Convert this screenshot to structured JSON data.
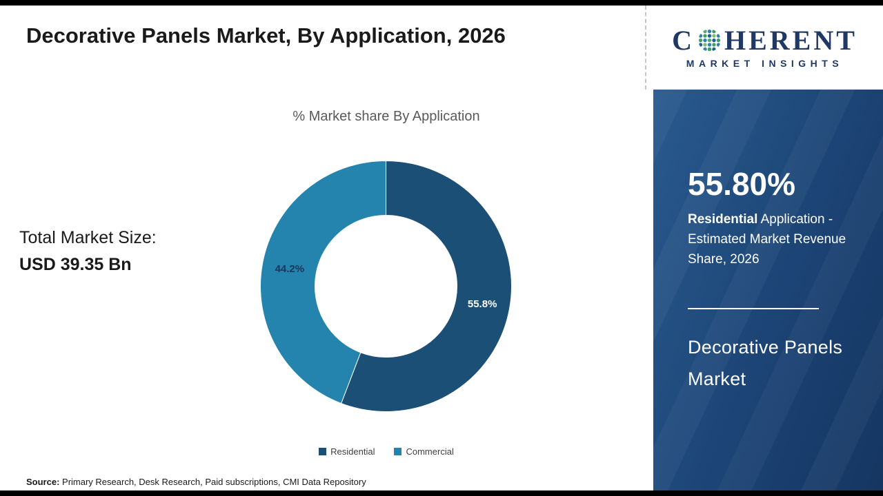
{
  "page": {
    "title": "Decorative Panels Market, By Application, 2026",
    "source_label": "Source:",
    "source_text": " Primary Research, Desk Research, Paid subscriptions, CMI Data Repository"
  },
  "logo": {
    "text_before": "C",
    "text_after": "HERENT",
    "icon": "globe-dots-icon",
    "subtitle": "MARKET INSIGHTS",
    "color": "#1f3864"
  },
  "main": {
    "total_label": "Total Market Size:",
    "total_value": "USD 39.35 Bn"
  },
  "chart_data": {
    "type": "pie",
    "donut": true,
    "title": "% Market share By Application",
    "categories": [
      "Residential",
      "Commercial"
    ],
    "values": [
      55.8,
      44.2
    ],
    "labels": [
      "55.8%",
      "44.2%"
    ],
    "colors": [
      "#1c4f76",
      "#2584ad"
    ],
    "label_colors": [
      "#ffffff",
      "#17375e"
    ],
    "legend_position": "bottom"
  },
  "sidebar": {
    "stat_value": "55.80%",
    "stat_desc_bold": "Residential",
    "stat_desc_rest": " Application - Estimated Market Revenue Share, 2026",
    "product_name": "Decorative Panels Market"
  }
}
